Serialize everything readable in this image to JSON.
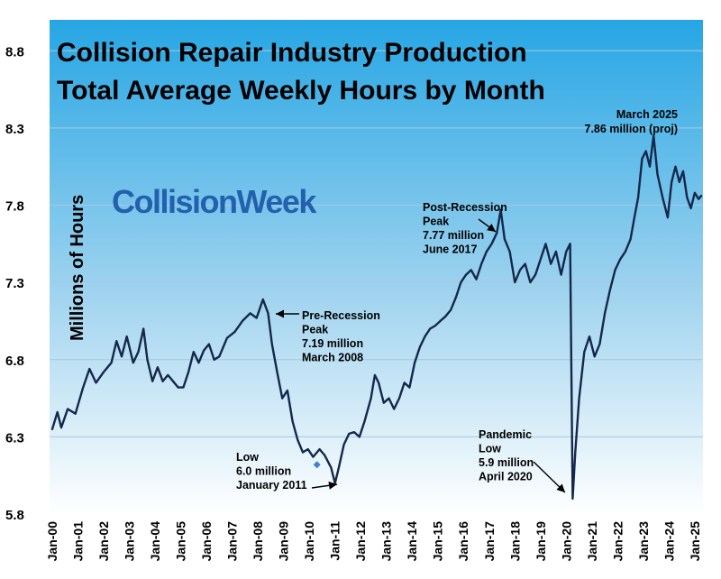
{
  "chart_data": {
    "type": "line",
    "title": "Collision Repair Industry Production",
    "subtitle": "Total Average Weekly Hours by Month",
    "ylabel": "Millions  of  Hours",
    "xlabel": "",
    "brand": "CollisionWeek",
    "ylim": [
      5.8,
      9.0
    ],
    "yticks": [
      5.8,
      6.3,
      6.8,
      7.3,
      7.8,
      8.3,
      8.8
    ],
    "ytick_labels": [
      "5.8",
      "6.3",
      "6.8",
      "7.3",
      "7.8",
      "8.3",
      "8.8"
    ],
    "xlim": [
      0,
      25.25
    ],
    "xtick_labels": [
      "Jan-00",
      "Jan-01",
      "Jan-02",
      "Jan-03",
      "Jan-04",
      "Jan-05",
      "Jan-06",
      "Jan-07",
      "Jan-08",
      "Jan-09",
      "Jan-10",
      "Jan-11",
      "Jan-12",
      "Jan-13",
      "Jan-14",
      "Jan-15",
      "Jan-16",
      "Jan-17",
      "Jan-18",
      "Jan-19",
      "Jan-20",
      "Jan-21",
      "Jan-22",
      "Jan-23",
      "Jan-24",
      "Jan-25"
    ],
    "grid": true,
    "series": [
      {
        "name": "",
        "color": "#15284b",
        "points": [
          [
            0.0,
            6.35
          ],
          [
            0.2,
            6.46
          ],
          [
            0.35,
            6.36
          ],
          [
            0.6,
            6.48
          ],
          [
            0.9,
            6.45
          ],
          [
            1.2,
            6.62
          ],
          [
            1.45,
            6.74
          ],
          [
            1.7,
            6.65
          ],
          [
            2.0,
            6.72
          ],
          [
            2.3,
            6.78
          ],
          [
            2.5,
            6.92
          ],
          [
            2.7,
            6.82
          ],
          [
            2.9,
            6.95
          ],
          [
            3.15,
            6.78
          ],
          [
            3.35,
            6.85
          ],
          [
            3.55,
            7.0
          ],
          [
            3.7,
            6.8
          ],
          [
            3.9,
            6.66
          ],
          [
            4.1,
            6.75
          ],
          [
            4.3,
            6.66
          ],
          [
            4.5,
            6.7
          ],
          [
            4.7,
            6.66
          ],
          [
            4.9,
            6.62
          ],
          [
            5.1,
            6.62
          ],
          [
            5.3,
            6.72
          ],
          [
            5.5,
            6.85
          ],
          [
            5.7,
            6.78
          ],
          [
            5.9,
            6.86
          ],
          [
            6.1,
            6.9
          ],
          [
            6.3,
            6.8
          ],
          [
            6.5,
            6.82
          ],
          [
            6.8,
            6.94
          ],
          [
            7.1,
            6.98
          ],
          [
            7.4,
            7.05
          ],
          [
            7.7,
            7.1
          ],
          [
            7.95,
            7.07
          ],
          [
            8.2,
            7.19
          ],
          [
            8.4,
            7.1
          ],
          [
            8.55,
            6.9
          ],
          [
            8.75,
            6.72
          ],
          [
            8.95,
            6.55
          ],
          [
            9.15,
            6.6
          ],
          [
            9.35,
            6.4
          ],
          [
            9.55,
            6.28
          ],
          [
            9.75,
            6.2
          ],
          [
            9.95,
            6.22
          ],
          [
            10.15,
            6.17
          ],
          [
            10.4,
            6.22
          ],
          [
            10.6,
            6.18
          ],
          [
            10.85,
            6.1
          ],
          [
            11.0,
            6.0
          ],
          [
            11.15,
            6.1
          ],
          [
            11.35,
            6.25
          ],
          [
            11.55,
            6.32
          ],
          [
            11.75,
            6.33
          ],
          [
            11.95,
            6.3
          ],
          [
            12.15,
            6.4
          ],
          [
            12.4,
            6.55
          ],
          [
            12.55,
            6.7
          ],
          [
            12.7,
            6.65
          ],
          [
            12.9,
            6.52
          ],
          [
            13.1,
            6.55
          ],
          [
            13.3,
            6.48
          ],
          [
            13.5,
            6.55
          ],
          [
            13.7,
            6.65
          ],
          [
            13.9,
            6.62
          ],
          [
            14.1,
            6.78
          ],
          [
            14.3,
            6.88
          ],
          [
            14.5,
            6.95
          ],
          [
            14.7,
            7.0
          ],
          [
            14.9,
            7.02
          ],
          [
            15.1,
            7.05
          ],
          [
            15.3,
            7.08
          ],
          [
            15.5,
            7.12
          ],
          [
            15.7,
            7.2
          ],
          [
            15.9,
            7.3
          ],
          [
            16.1,
            7.35
          ],
          [
            16.3,
            7.38
          ],
          [
            16.5,
            7.32
          ],
          [
            16.7,
            7.42
          ],
          [
            16.9,
            7.5
          ],
          [
            17.1,
            7.55
          ],
          [
            17.3,
            7.62
          ],
          [
            17.45,
            7.77
          ],
          [
            17.6,
            7.58
          ],
          [
            17.8,
            7.5
          ],
          [
            18.0,
            7.3
          ],
          [
            18.2,
            7.38
          ],
          [
            18.4,
            7.42
          ],
          [
            18.6,
            7.3
          ],
          [
            18.8,
            7.35
          ],
          [
            19.0,
            7.45
          ],
          [
            19.2,
            7.55
          ],
          [
            19.4,
            7.42
          ],
          [
            19.6,
            7.5
          ],
          [
            19.8,
            7.35
          ],
          [
            20.0,
            7.5
          ],
          [
            20.15,
            7.55
          ],
          [
            20.25,
            5.9
          ],
          [
            20.35,
            6.2
          ],
          [
            20.5,
            6.55
          ],
          [
            20.7,
            6.85
          ],
          [
            20.9,
            6.95
          ],
          [
            21.1,
            6.82
          ],
          [
            21.3,
            6.9
          ],
          [
            21.5,
            7.1
          ],
          [
            21.7,
            7.25
          ],
          [
            21.9,
            7.38
          ],
          [
            22.1,
            7.45
          ],
          [
            22.3,
            7.5
          ],
          [
            22.5,
            7.58
          ],
          [
            22.65,
            7.72
          ],
          [
            22.8,
            7.85
          ],
          [
            22.95,
            8.1
          ],
          [
            23.1,
            8.15
          ],
          [
            23.25,
            8.05
          ],
          [
            23.4,
            8.25
          ],
          [
            23.55,
            8.0
          ],
          [
            23.75,
            7.85
          ],
          [
            23.95,
            7.72
          ],
          [
            24.1,
            7.95
          ],
          [
            24.25,
            8.05
          ],
          [
            24.4,
            7.95
          ],
          [
            24.55,
            8.02
          ],
          [
            24.7,
            7.85
          ],
          [
            24.85,
            7.78
          ],
          [
            25.0,
            7.88
          ],
          [
            25.15,
            7.84
          ],
          [
            25.25,
            7.86
          ]
        ]
      }
    ],
    "marker": {
      "x": 10.3,
      "y": 6.12,
      "color": "#3f7fd6"
    },
    "annotations": [
      {
        "id": "pre-recession-peak",
        "lines": [
          "Pre-Recession",
          "Peak",
          "7.19 million",
          "March 2008"
        ],
        "target": [
          8.2,
          7.19
        ]
      },
      {
        "id": "low-2011",
        "lines": [
          "Low",
          "6.0 million",
          "January 2011"
        ],
        "target": [
          11.0,
          6.0
        ]
      },
      {
        "id": "post-recession-peak",
        "lines": [
          "Post-Recession",
          "Peak",
          "7.77 million",
          "June 2017"
        ],
        "target": [
          17.45,
          7.77
        ]
      },
      {
        "id": "pandemic-low",
        "lines": [
          "Pandemic",
          "Low",
          "5.9 million",
          "April 2020"
        ],
        "target": [
          20.25,
          5.9
        ]
      },
      {
        "id": "march-2025",
        "lines": [
          "March 2025",
          "7.86 million (proj)"
        ]
      }
    ],
    "colors": {
      "background_top": "#26a6e4",
      "background_bottom": "#ffffff",
      "line": "#15284b",
      "grid": "#a8c8dc"
    }
  }
}
